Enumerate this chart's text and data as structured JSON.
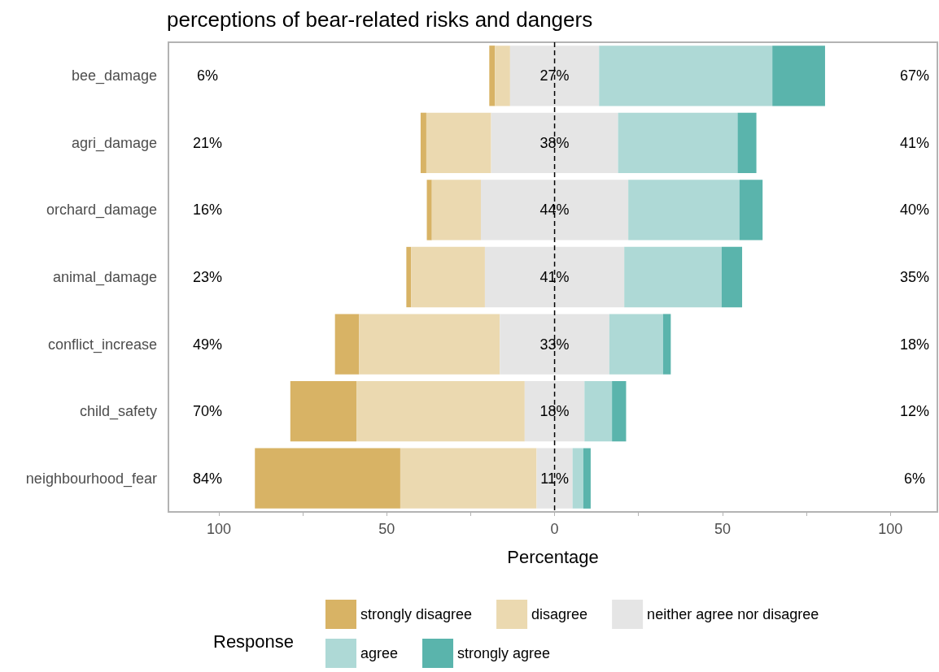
{
  "chart_data": {
    "type": "bar",
    "orientation": "horizontal",
    "title": "perceptions of bear-related risks and dangers",
    "xlabel": "Percentage",
    "legend_title": "Response",
    "legend": "bottom",
    "grid": false,
    "categories": [
      "bee_damage",
      "agri_damage",
      "orchard_damage",
      "animal_damage",
      "conflict_increase",
      "child_safety",
      "neighbourhood_fear"
    ],
    "series": [
      {
        "name": "strongly disagree",
        "color": "#d8b365",
        "values": [
          1.7,
          1.7,
          1.5,
          1.4,
          7.2,
          19.7,
          43.3
        ],
        "base": [
          -19.45,
          -39.9,
          -38.05,
          -44.15,
          -65.4,
          -78.7,
          -89.25
        ]
      },
      {
        "name": "disagree",
        "color": "#ebd9b0",
        "values": [
          4.5,
          19.3,
          14.6,
          22.0,
          41.9,
          50.1,
          40.6
        ],
        "base": [
          -17.75,
          -38.2,
          -36.55,
          -42.75,
          -58.2,
          -59.0,
          -45.95
        ]
      },
      {
        "name": "neither agree nor disagree",
        "color": "#e5e5e5",
        "values": [
          26.5,
          37.8,
          43.9,
          41.5,
          32.6,
          17.8,
          10.7
        ],
        "base": [
          -13.25,
          -18.9,
          -21.95,
          -20.75,
          -16.3,
          -8.9,
          -5.35
        ],
        "value_labels": [
          "27%",
          "38%",
          "44%",
          "41%",
          "33%",
          "18%",
          "11%"
        ]
      },
      {
        "name": "agree",
        "color": "#aed9d6",
        "values": [
          51.6,
          35.6,
          33.1,
          29.0,
          16.0,
          8.2,
          3.2
        ],
        "base": [
          13.25,
          18.9,
          21.95,
          20.75,
          16.3,
          8.9,
          5.35
        ]
      },
      {
        "name": "strongly agree",
        "color": "#5ab4ac",
        "values": [
          15.7,
          5.6,
          6.9,
          6.1,
          2.3,
          4.2,
          2.2
        ],
        "base": [
          64.85,
          54.5,
          55.05,
          49.75,
          32.3,
          17.1,
          8.55
        ]
      }
    ],
    "xlim": [
      -115,
      114
    ],
    "xticks": [
      {
        "value": -100,
        "label": "100"
      },
      {
        "value": -75,
        "label": null
      },
      {
        "value": -50,
        "label": "50"
      },
      {
        "value": -25,
        "label": null
      },
      0,
      {
        "value": 25,
        "label": null
      },
      50,
      {
        "value": 75,
        "label": null
      },
      100
    ],
    "ref_lines": [
      {
        "axis": "x",
        "value": 0,
        "label": null,
        "color": "#000000",
        "line_style": "dashed"
      }
    ],
    "annotations": [
      "6%",
      "67%",
      "21%",
      "41%",
      "16%",
      "40%",
      "23%",
      "35%",
      "49%",
      "18%",
      "70%",
      "12%",
      "84%",
      "6%"
    ]
  }
}
